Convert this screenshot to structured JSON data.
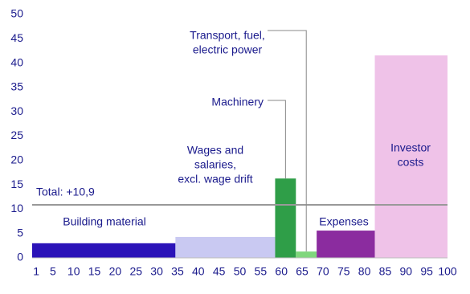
{
  "chart_data": {
    "type": "histogram",
    "bins": [
      0,
      34.5,
      58.5,
      63.5,
      68.5,
      82.5,
      100
    ],
    "categories": [
      [
        "Building material"
      ],
      [
        "Wages and",
        "salaries,",
        "excl. wage drift"
      ],
      [
        "Machinery"
      ],
      [
        "Transport, fuel,",
        "electric power"
      ],
      [
        "Expenses"
      ],
      [
        "Investor",
        "costs"
      ]
    ],
    "values": [
      3.0,
      4.3,
      16.3,
      1.3,
      5.6,
      41.6
    ],
    "colors": [
      "#2b13b8",
      "#c9c9f2",
      "#2f9e48",
      "#7fd67c",
      "#8b2c9f",
      "#efc2e8"
    ],
    "total": {
      "value": 10.9,
      "label": "Total: +10,9"
    },
    "xlim": [
      0,
      100
    ],
    "xticks": [
      1,
      5,
      10,
      15,
      20,
      25,
      30,
      35,
      40,
      45,
      50,
      55,
      60,
      65,
      70,
      75,
      80,
      85,
      90,
      95,
      100
    ],
    "ylim": [
      0,
      50
    ],
    "yticks": [
      0,
      5,
      10,
      15,
      20,
      25,
      30,
      35,
      40,
      45,
      50
    ]
  }
}
